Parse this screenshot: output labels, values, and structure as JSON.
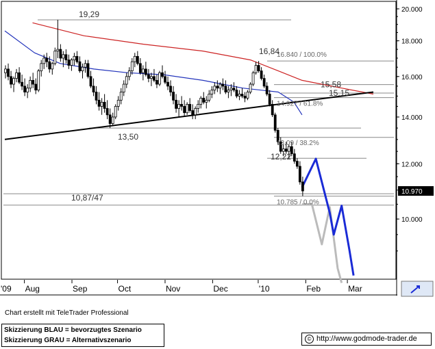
{
  "chart_data": {
    "type": "line",
    "y_scale": "log",
    "ylim": [
      8.2,
      20.5
    ],
    "y_ticks": [
      20,
      18,
      16,
      14,
      12,
      10
    ],
    "y_tick_labels": [
      "20.000",
      "18.000",
      "16.000",
      "14.000",
      "12.000",
      "10.000"
    ],
    "x_tick_labels": [
      "'09",
      "Aug",
      "Sep",
      "Oct",
      "Nov",
      "Dec",
      "'10",
      "Feb",
      "Mar"
    ],
    "current_price_label": "10.970",
    "current_price": 10.97,
    "price_levels": [
      {
        "label": "19,29",
        "value": 19.29
      },
      {
        "label": "16,84",
        "value": 16.84
      },
      {
        "label": "15,58",
        "value": 15.58
      },
      {
        "label": "15,15",
        "value": 15.15
      },
      {
        "label": "13,50",
        "value": 13.5
      },
      {
        "label": "12,22",
        "value": 12.22
      },
      {
        "label": "10,87/47",
        "value": 10.87
      },
      {
        "label": "",
        "value": 10.47
      }
    ],
    "fib_levels": [
      {
        "label": "16.840 / 100.0%",
        "value": 16.84
      },
      {
        "label": "14.927 / 61.8%",
        "value": 14.927
      },
      {
        "label": "13.09 / 38.2%",
        "value": 13.09
      },
      {
        "label": "10.785 / 0.0%",
        "value": 10.785
      }
    ],
    "series": [
      {
        "type": "candlestick",
        "ohlc": [
          [
            16.2,
            16.6,
            15.9,
            16.4
          ],
          [
            16.4,
            16.7,
            15.8,
            16.0
          ],
          [
            16.0,
            16.3,
            15.4,
            15.6
          ],
          [
            15.6,
            16.0,
            15.2,
            15.9
          ],
          [
            15.9,
            16.4,
            15.7,
            16.2
          ],
          [
            16.2,
            16.5,
            15.6,
            15.7
          ],
          [
            15.7,
            16.1,
            15.3,
            15.5
          ],
          [
            15.5,
            15.9,
            15.0,
            15.2
          ],
          [
            15.2,
            15.6,
            14.9,
            15.4
          ],
          [
            15.4,
            16.0,
            15.2,
            15.8
          ],
          [
            15.8,
            16.2,
            15.4,
            15.6
          ],
          [
            15.6,
            15.9,
            15.1,
            15.3
          ],
          [
            15.3,
            16.4,
            15.2,
            16.3
          ],
          [
            16.3,
            16.9,
            16.0,
            16.7
          ],
          [
            16.7,
            17.2,
            16.4,
            17.0
          ],
          [
            17.0,
            17.3,
            16.5,
            16.8
          ],
          [
            16.8,
            17.1,
            16.2,
            16.4
          ],
          [
            16.4,
            16.8,
            16.1,
            16.7
          ],
          [
            16.7,
            17.6,
            16.6,
            17.4
          ],
          [
            17.4,
            19.29,
            17.0,
            17.5
          ],
          [
            17.5,
            17.8,
            16.8,
            17.0
          ],
          [
            17.0,
            17.4,
            16.5,
            17.2
          ],
          [
            17.2,
            17.5,
            16.7,
            16.9
          ],
          [
            16.9,
            17.2,
            16.4,
            16.6
          ],
          [
            16.6,
            17.0,
            16.3,
            16.9
          ],
          [
            16.9,
            17.3,
            16.6,
            17.1
          ],
          [
            17.1,
            17.4,
            16.7,
            16.8
          ],
          [
            16.8,
            17.1,
            16.2,
            16.3
          ],
          [
            16.3,
            16.7,
            15.9,
            16.5
          ],
          [
            16.5,
            16.9,
            16.2,
            16.7
          ],
          [
            16.7,
            16.9,
            15.9,
            16.0
          ],
          [
            16.0,
            16.3,
            15.4,
            15.5
          ],
          [
            15.5,
            15.9,
            15.0,
            15.2
          ],
          [
            15.2,
            15.5,
            14.6,
            14.8
          ],
          [
            14.8,
            15.2,
            14.3,
            14.5
          ],
          [
            14.5,
            14.9,
            14.1,
            14.7
          ],
          [
            14.7,
            15.1,
            14.2,
            14.4
          ],
          [
            14.4,
            14.8,
            13.9,
            14.1
          ],
          [
            14.1,
            14.4,
            13.5,
            13.7
          ],
          [
            13.7,
            14.2,
            13.6,
            14.0
          ],
          [
            14.0,
            14.6,
            13.9,
            14.5
          ],
          [
            14.5,
            15.0,
            14.3,
            14.8
          ],
          [
            14.8,
            15.4,
            14.6,
            15.2
          ],
          [
            15.2,
            15.8,
            15.0,
            15.6
          ],
          [
            15.6,
            16.2,
            15.4,
            16.0
          ],
          [
            16.0,
            16.5,
            15.8,
            16.3
          ],
          [
            16.3,
            17.0,
            16.1,
            16.8
          ],
          [
            16.8,
            17.3,
            16.5,
            17.1
          ],
          [
            17.1,
            17.4,
            16.6,
            16.7
          ],
          [
            16.7,
            17.0,
            16.1,
            16.2
          ],
          [
            16.2,
            16.6,
            15.8,
            16.4
          ],
          [
            16.4,
            16.8,
            16.0,
            16.1
          ],
          [
            16.1,
            16.4,
            15.7,
            15.9
          ],
          [
            15.9,
            16.2,
            15.5,
            16.0
          ],
          [
            16.0,
            16.4,
            15.7,
            15.8
          ],
          [
            15.8,
            16.1,
            15.4,
            15.6
          ],
          [
            15.6,
            16.3,
            15.5,
            16.2
          ],
          [
            16.2,
            16.6,
            15.9,
            16.0
          ],
          [
            16.0,
            16.3,
            15.6,
            15.7
          ],
          [
            15.7,
            16.0,
            15.3,
            15.5
          ],
          [
            15.5,
            15.8,
            15.0,
            15.2
          ],
          [
            15.2,
            15.5,
            14.6,
            14.8
          ],
          [
            14.8,
            15.1,
            14.2,
            14.4
          ],
          [
            14.4,
            14.8,
            14.0,
            14.6
          ],
          [
            14.6,
            15.0,
            14.3,
            14.5
          ],
          [
            14.5,
            14.8,
            14.0,
            14.2
          ],
          [
            14.2,
            14.7,
            14.1,
            14.6
          ],
          [
            14.6,
            14.9,
            14.2,
            14.3
          ],
          [
            14.3,
            14.6,
            13.9,
            14.1
          ],
          [
            14.1,
            14.5,
            13.9,
            14.4
          ],
          [
            14.4,
            14.8,
            14.2,
            14.6
          ],
          [
            14.6,
            15.0,
            14.4,
            14.9
          ],
          [
            14.9,
            15.2,
            14.6,
            14.7
          ],
          [
            14.7,
            15.0,
            14.4,
            14.8
          ],
          [
            14.8,
            15.3,
            14.7,
            15.1
          ],
          [
            15.1,
            15.5,
            14.9,
            15.3
          ],
          [
            15.3,
            15.7,
            15.1,
            15.5
          ],
          [
            15.5,
            15.8,
            15.2,
            15.4
          ],
          [
            15.4,
            15.7,
            15.1,
            15.6
          ],
          [
            15.6,
            15.9,
            15.3,
            15.5
          ],
          [
            15.5,
            15.8,
            15.1,
            15.2
          ],
          [
            15.2,
            15.5,
            14.9,
            15.3
          ],
          [
            15.3,
            15.6,
            15.0,
            15.4
          ],
          [
            15.4,
            15.7,
            15.2,
            15.3
          ],
          [
            15.3,
            15.5,
            14.9,
            15.0
          ],
          [
            15.0,
            15.3,
            14.8,
            15.1
          ],
          [
            15.1,
            15.4,
            14.9,
            15.0
          ],
          [
            15.0,
            15.2,
            14.7,
            14.9
          ],
          [
            14.9,
            15.3,
            14.8,
            15.2
          ],
          [
            15.2,
            15.7,
            15.1,
            15.6
          ],
          [
            15.6,
            16.3,
            15.5,
            16.2
          ],
          [
            16.2,
            16.8,
            16.1,
            16.6
          ],
          [
            16.6,
            16.84,
            16.2,
            16.3
          ],
          [
            16.3,
            16.5,
            15.8,
            15.9
          ],
          [
            15.9,
            16.1,
            15.4,
            15.5
          ],
          [
            15.5,
            15.7,
            15.0,
            15.1
          ],
          [
            15.1,
            15.3,
            14.5,
            14.6
          ],
          [
            14.6,
            14.8,
            14.0,
            14.1
          ],
          [
            14.1,
            14.2,
            13.3,
            13.4
          ],
          [
            13.4,
            13.5,
            12.8,
            12.9
          ],
          [
            12.9,
            13.1,
            12.4,
            12.5
          ],
          [
            12.5,
            12.8,
            12.3,
            12.6
          ],
          [
            12.6,
            12.9,
            12.4,
            12.5
          ],
          [
            12.5,
            12.8,
            12.2,
            12.7
          ],
          [
            12.7,
            12.9,
            12.3,
            12.4
          ],
          [
            12.4,
            12.6,
            12.0,
            12.1
          ],
          [
            12.1,
            12.22,
            11.8,
            11.9
          ],
          [
            11.9,
            12.1,
            11.2,
            11.3
          ],
          [
            11.3,
            11.5,
            10.785,
            10.97
          ]
        ]
      },
      {
        "type": "moving-average",
        "color": "#2233bb",
        "values": [
          [
            0,
            18.6
          ],
          [
            15,
            17.3
          ],
          [
            28,
            16.7
          ],
          [
            45,
            16.4
          ],
          [
            62,
            16.2
          ],
          [
            80,
            16.1
          ],
          [
            100,
            15.8
          ],
          [
            120,
            15.4
          ],
          [
            138,
            15.2
          ],
          [
            146,
            14.7
          ],
          [
            150,
            14.1
          ]
        ]
      },
      {
        "type": "moving-average",
        "color": "#cc2222",
        "values": [
          [
            14,
            19.1
          ],
          [
            40,
            18.3
          ],
          [
            70,
            17.8
          ],
          [
            100,
            17.4
          ],
          [
            124,
            16.9
          ],
          [
            138,
            16.3
          ],
          [
            150,
            15.8
          ],
          [
            170,
            15.4
          ],
          [
            186,
            15.1
          ]
        ]
      },
      {
        "type": "trendline",
        "color": "#000000",
        "values": [
          [
            0,
            13.0
          ],
          [
            186,
            15.2
          ]
        ]
      },
      {
        "type": "scenario",
        "name": "Skizzierung BLAU = bevorzugtes Szenario",
        "color": "#1a2bd6",
        "values": [
          [
            150,
            11.1
          ],
          [
            157,
            12.2
          ],
          [
            164,
            10.2
          ],
          [
            166,
            9.5
          ],
          [
            170,
            10.45
          ],
          [
            174,
            9.0
          ],
          [
            176,
            8.3
          ]
        ]
      },
      {
        "type": "scenario",
        "name": "Skizzierung GRAU = Alternativszenario",
        "color": "#bbbbbb",
        "values": [
          [
            150,
            10.5
          ],
          [
            155,
            10.5
          ],
          [
            160,
            9.2
          ],
          [
            164,
            10.4
          ],
          [
            168,
            8.5
          ],
          [
            170,
            8.1
          ]
        ]
      }
    ]
  },
  "footer": {
    "credit": "Chart erstellt mit TeleTrader Professional",
    "legend_blue": "Skizzierung BLAU = bevorzugtes Szenario",
    "legend_gray": "Skizzierung GRAU = Alternativszenario",
    "copyright_symbol": "©",
    "url": "http://www.godmode-trader.de"
  }
}
